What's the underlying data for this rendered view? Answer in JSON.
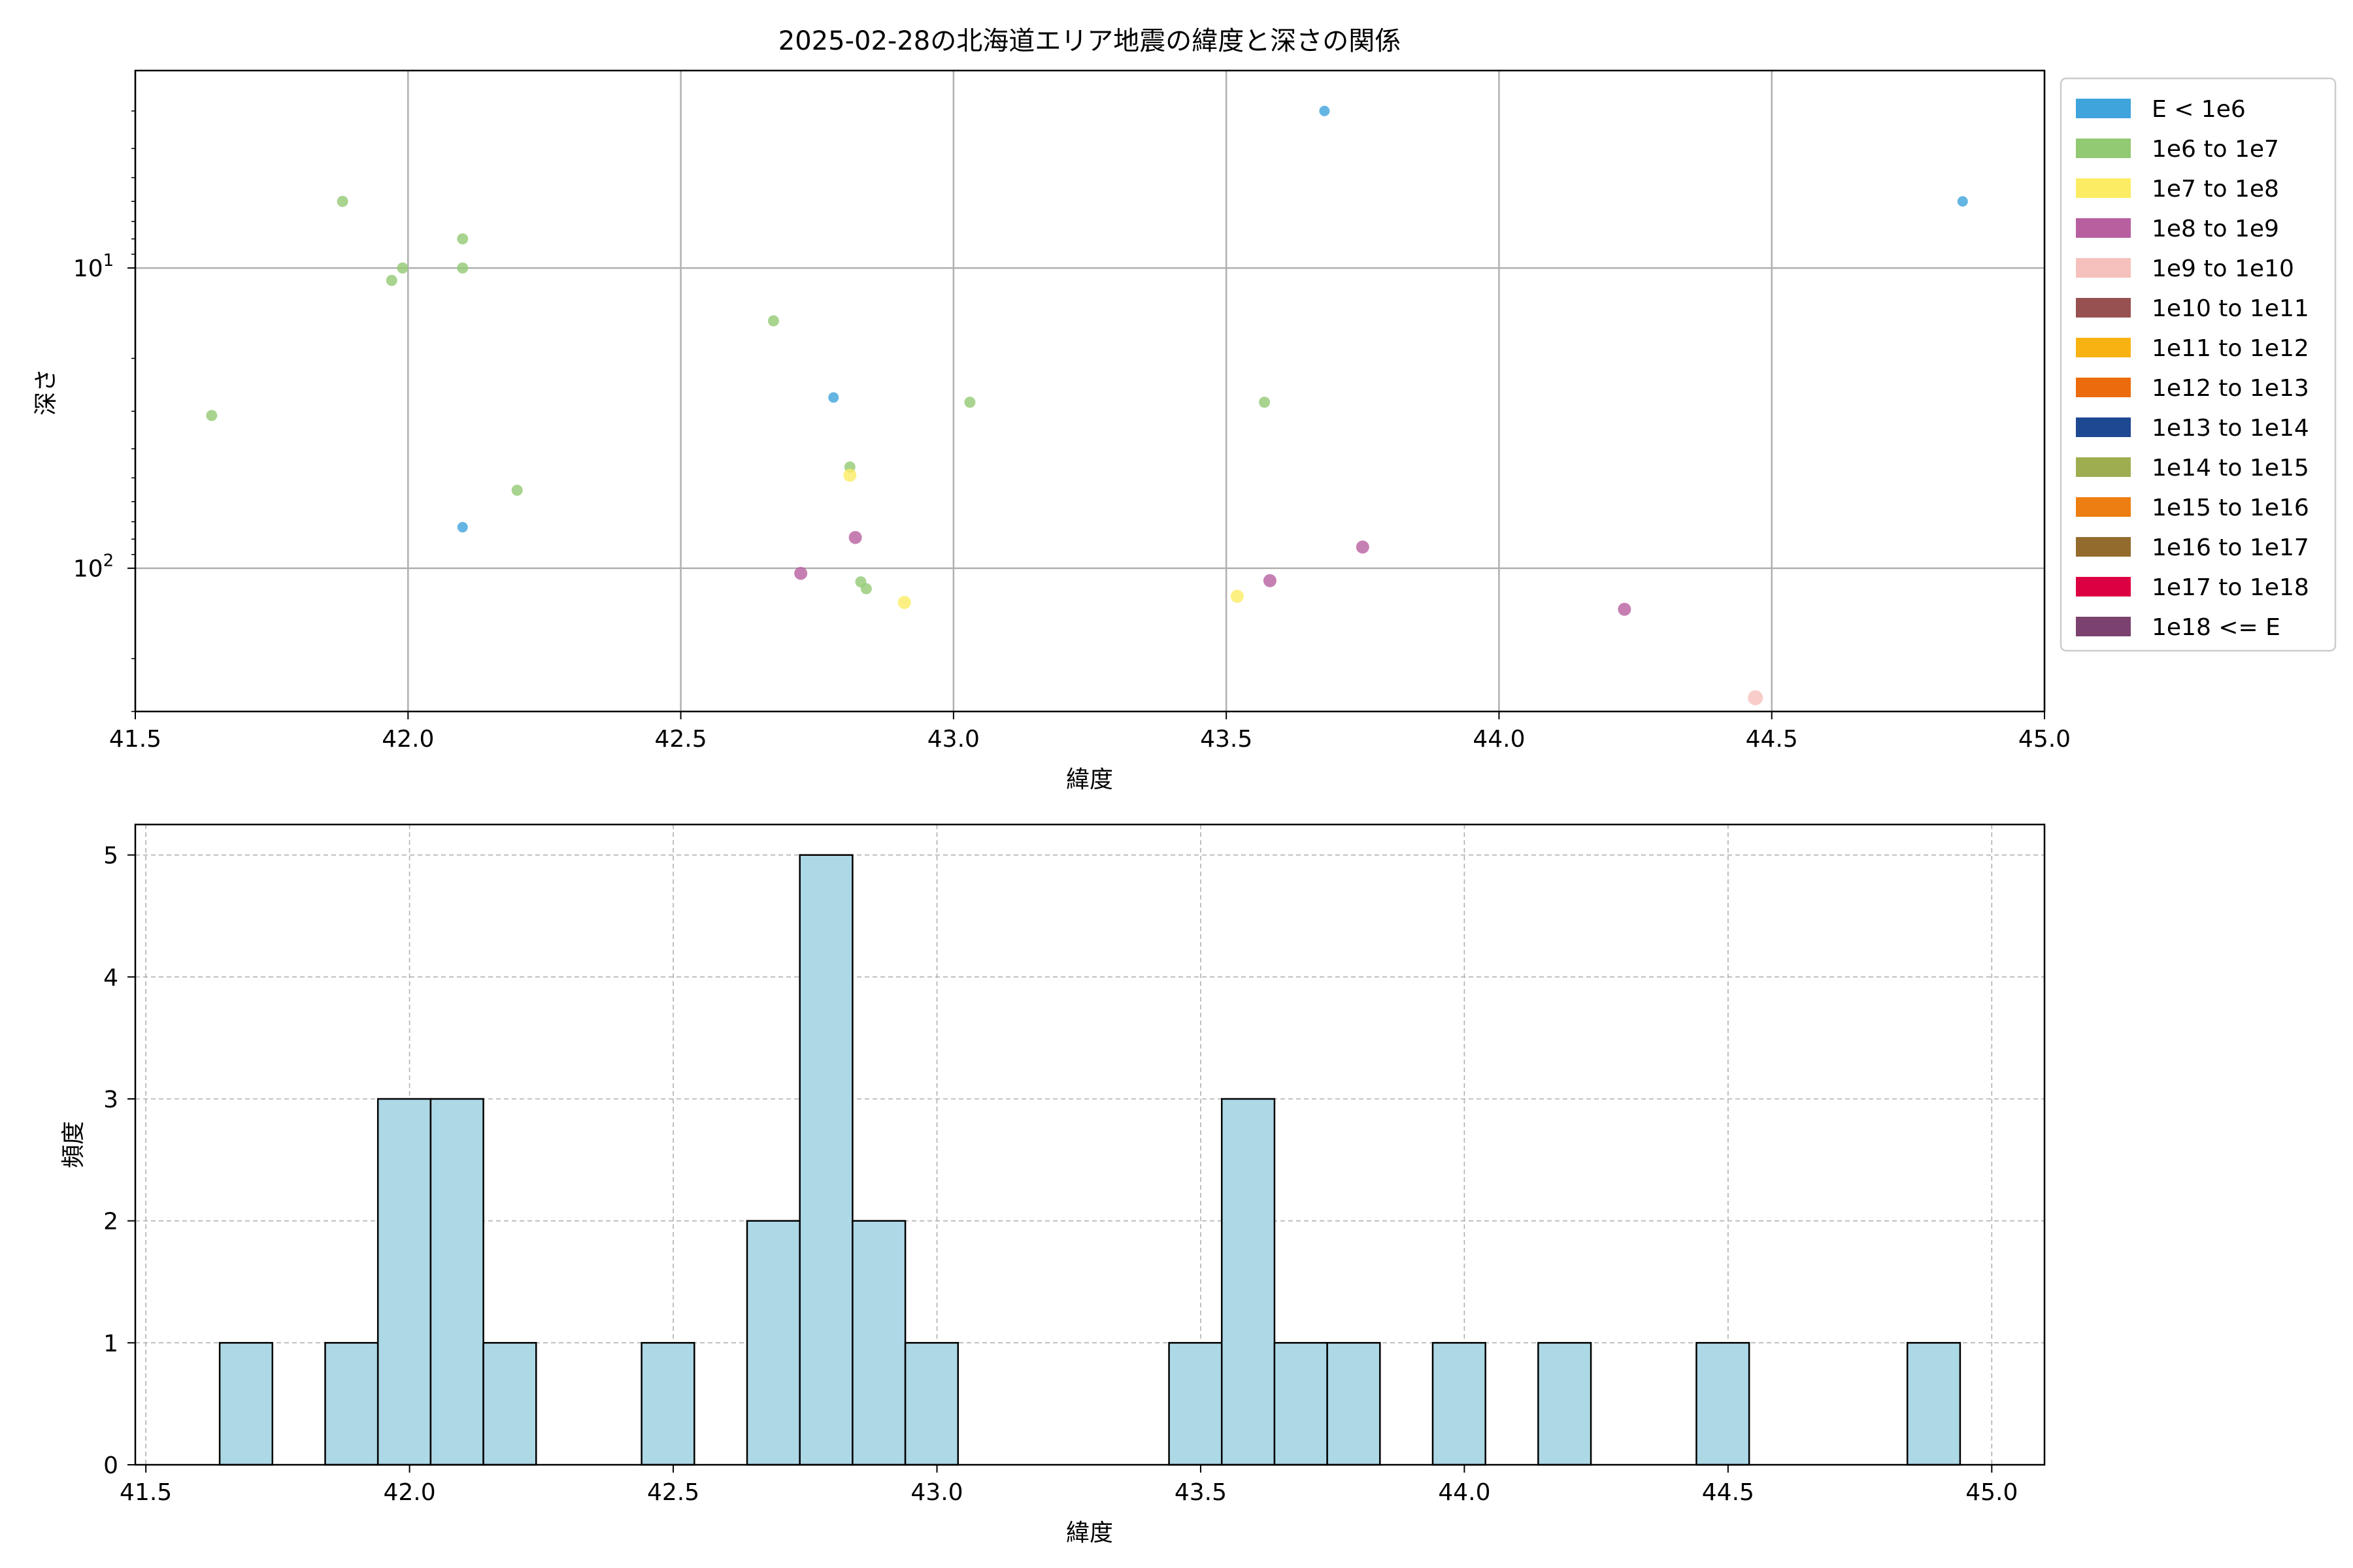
{
  "chart_data": [
    {
      "type": "scatter",
      "title": "2025-02-28の北海道エリア地震の緯度と深さの関係",
      "xlabel": "緯度",
      "ylabel": "深さ",
      "xlim": [
        41.5,
        45.0
      ],
      "ylim": [
        300,
        2.2
      ],
      "yscale": "log",
      "y_inverted": true,
      "grid": true,
      "legend_position": "outside-right",
      "x_ticks": [
        "41.5",
        "42.0",
        "42.5",
        "43.0",
        "43.5",
        "44.0",
        "44.5",
        "45.0"
      ],
      "y_ticks": [
        {
          "value": 10,
          "base": "10",
          "exp": "1"
        },
        {
          "value": 100,
          "base": "10",
          "exp": "2"
        }
      ],
      "legend": [
        {
          "label": "E < 1e6",
          "color": "#3fa3dc"
        },
        {
          "label": "1e6 to 1e7",
          "color": "#92c973"
        },
        {
          "label": "1e7 to 1e8",
          "color": "#fbec63"
        },
        {
          "label": "1e8 to 1e9",
          "color": "#b85fa0"
        },
        {
          "label": "1e9 to 1e10",
          "color": "#f6c1bc"
        },
        {
          "label": "1e10 to 1e11",
          "color": "#975150"
        },
        {
          "label": "1e11 to 1e12",
          "color": "#f8b312"
        },
        {
          "label": "1e12 to 1e13",
          "color": "#ec6b0c"
        },
        {
          "label": "1e13 to 1e14",
          "color": "#1e4891"
        },
        {
          "label": "1e14 to 1e15",
          "color": "#9fad51"
        },
        {
          "label": "1e15 to 1e16",
          "color": "#ed7e11"
        },
        {
          "label": "1e16 to 1e17",
          "color": "#936c2d"
        },
        {
          "label": "1e17 to 1e18",
          "color": "#dc0042"
        },
        {
          "label": "1e18 <= E",
          "color": "#7c426f"
        }
      ],
      "points": [
        {
          "x": 43.68,
          "y": 3,
          "cls": 0
        },
        {
          "x": 44.85,
          "y": 6,
          "cls": 0
        },
        {
          "x": 42.78,
          "y": 27,
          "cls": 0
        },
        {
          "x": 42.1,
          "y": 73,
          "cls": 0
        },
        {
          "x": 41.88,
          "y": 6,
          "cls": 1
        },
        {
          "x": 42.1,
          "y": 8,
          "cls": 1
        },
        {
          "x": 41.99,
          "y": 10,
          "cls": 1
        },
        {
          "x": 41.97,
          "y": 11,
          "cls": 1
        },
        {
          "x": 42.1,
          "y": 10,
          "cls": 1
        },
        {
          "x": 42.67,
          "y": 15,
          "cls": 1
        },
        {
          "x": 41.64,
          "y": 31,
          "cls": 1
        },
        {
          "x": 43.03,
          "y": 28,
          "cls": 1
        },
        {
          "x": 43.57,
          "y": 28,
          "cls": 1
        },
        {
          "x": 42.81,
          "y": 46,
          "cls": 1
        },
        {
          "x": 42.2,
          "y": 55,
          "cls": 1
        },
        {
          "x": 42.83,
          "y": 111,
          "cls": 1
        },
        {
          "x": 42.84,
          "y": 117,
          "cls": 1
        },
        {
          "x": 42.81,
          "y": 49,
          "cls": 2
        },
        {
          "x": 42.91,
          "y": 130,
          "cls": 2
        },
        {
          "x": 43.52,
          "y": 124,
          "cls": 2
        },
        {
          "x": 42.82,
          "y": 79,
          "cls": 3
        },
        {
          "x": 43.75,
          "y": 85,
          "cls": 3
        },
        {
          "x": 42.72,
          "y": 104,
          "cls": 3
        },
        {
          "x": 43.58,
          "y": 110,
          "cls": 3
        },
        {
          "x": 44.23,
          "y": 137,
          "cls": 3
        },
        {
          "x": 44.47,
          "y": 270,
          "cls": 4
        }
      ]
    },
    {
      "type": "bar",
      "subtype": "histogram",
      "xlabel": "緯度",
      "ylabel": "頻度",
      "xlim": [
        41.48,
        45.1
      ],
      "ylim": [
        0,
        5.25
      ],
      "grid": true,
      "bar_color": "#add8e6",
      "edge_color": "#000000",
      "x_ticks": [
        "41.5",
        "42.0",
        "42.5",
        "43.0",
        "43.5",
        "44.0",
        "44.5",
        "45.0"
      ],
      "y_ticks": [
        "0",
        "1",
        "2",
        "3",
        "4",
        "5"
      ],
      "bin_start": 41.64,
      "bin_width": 0.1,
      "counts": [
        1,
        0,
        1,
        3,
        3,
        1,
        0,
        0,
        1,
        0,
        2,
        5,
        2,
        1,
        0,
        0,
        0,
        0,
        1,
        3,
        1,
        1,
        0,
        1,
        0,
        1,
        0,
        0,
        1,
        0,
        0,
        0,
        1
      ]
    }
  ]
}
